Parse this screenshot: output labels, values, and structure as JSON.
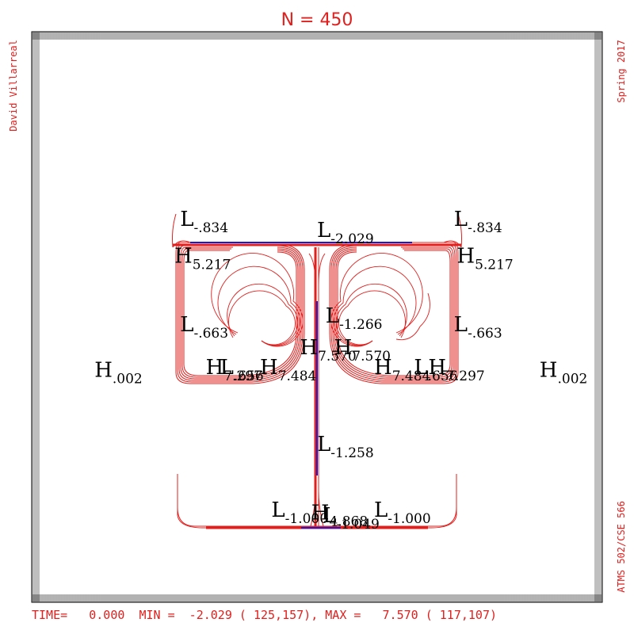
{
  "title": "N = 450",
  "author": "David Villarreal",
  "term": "Spring 2017",
  "course": "ATMS 502/CSE 566",
  "footer": "TIME=   0.000  MIN =  -2.029 ( 125,157), MAX =   7.570 ( 117,107)",
  "colors": {
    "contour": "#e0201e",
    "zero_line": "#1a1ad0",
    "frame": "#000000"
  },
  "chart_data": {
    "type": "contour",
    "title": "N = 450",
    "grid_size": 450,
    "time": 0.0,
    "min": {
      "value": -2.029,
      "i": 125,
      "j": 157
    },
    "max": {
      "value": 7.57,
      "i": 117,
      "j": 107
    },
    "extrema_labels": [
      {
        "kind": "L",
        "value": "-.834",
        "x": 0.26,
        "y": 0.34
      },
      {
        "kind": "L",
        "value": "-.834",
        "x": 0.74,
        "y": 0.34
      },
      {
        "kind": "L",
        "value": "-2.029",
        "x": 0.5,
        "y": 0.36
      },
      {
        "kind": "H",
        "value": "5.217",
        "x": 0.25,
        "y": 0.405
      },
      {
        "kind": "H",
        "value": "5.217",
        "x": 0.745,
        "y": 0.405
      },
      {
        "kind": "L",
        "value": "-.663",
        "x": 0.26,
        "y": 0.525
      },
      {
        "kind": "L",
        "value": "-.663",
        "x": 0.74,
        "y": 0.525
      },
      {
        "kind": "L",
        "value": "-1.266",
        "x": 0.515,
        "y": 0.51
      },
      {
        "kind": "H",
        "value": "7.570",
        "x": 0.47,
        "y": 0.565
      },
      {
        "kind": "H",
        "value": "7.570",
        "x": 0.53,
        "y": 0.565
      },
      {
        "kind": "H",
        "value": "7.297",
        "x": 0.305,
        "y": 0.6
      },
      {
        "kind": "L",
        "value": ".656",
        "x": 0.33,
        "y": 0.6
      },
      {
        "kind": "H",
        "value": "7.484",
        "x": 0.4,
        "y": 0.6
      },
      {
        "kind": "H",
        "value": "7.484",
        "x": 0.6,
        "y": 0.6
      },
      {
        "kind": "L",
        "value": ".656",
        "x": 0.67,
        "y": 0.6
      },
      {
        "kind": "H",
        "value": "7.297",
        "x": 0.695,
        "y": 0.6
      },
      {
        "kind": "H",
        "value": ".002",
        "x": 0.11,
        "y": 0.605
      },
      {
        "kind": "H",
        "value": ".002",
        "x": 0.89,
        "y": 0.605
      },
      {
        "kind": "L",
        "value": "-1.258",
        "x": 0.5,
        "y": 0.735
      },
      {
        "kind": "L",
        "value": "-1.000",
        "x": 0.42,
        "y": 0.85
      },
      {
        "kind": "L",
        "value": "-1.000",
        "x": 0.6,
        "y": 0.85
      },
      {
        "kind": "H",
        "value": "4.868",
        "x": 0.49,
        "y": 0.855
      },
      {
        "kind": "L",
        "value": "-1.049",
        "x": 0.51,
        "y": 0.86
      }
    ]
  }
}
